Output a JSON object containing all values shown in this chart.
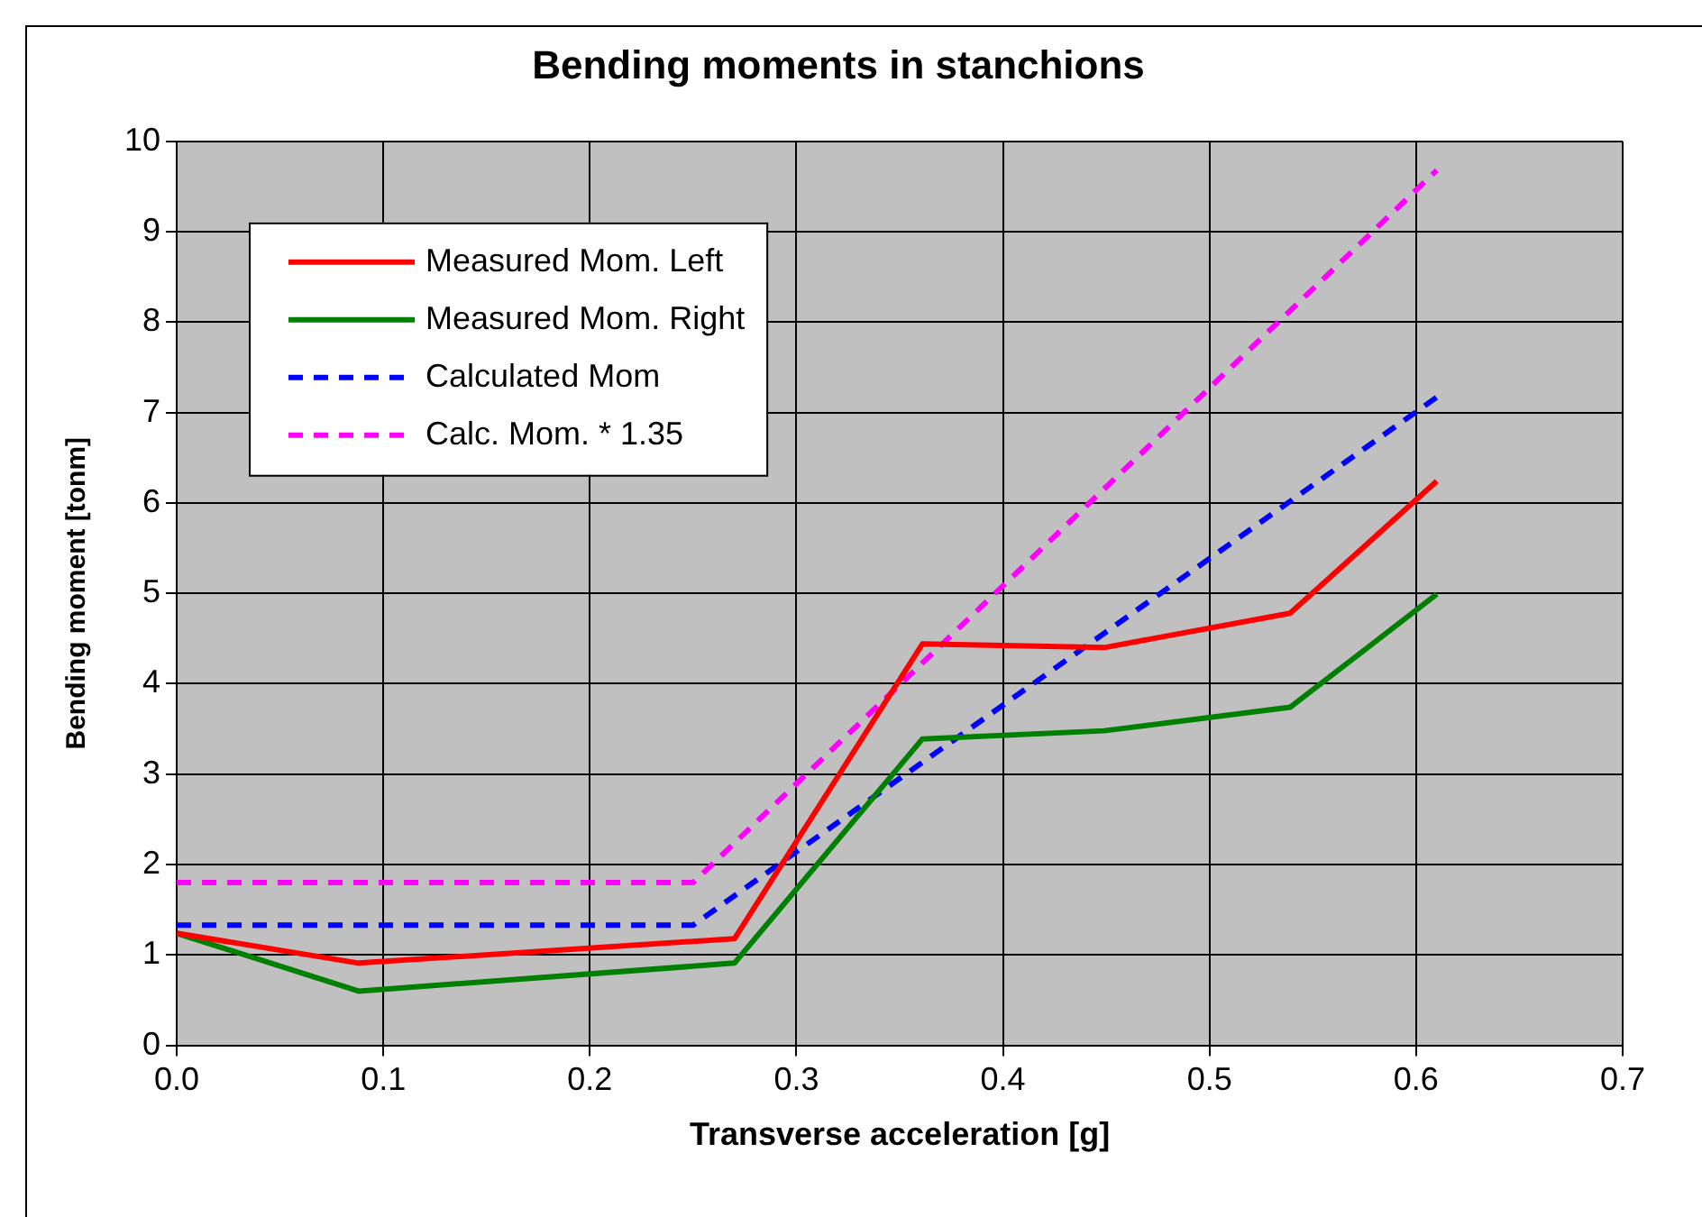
{
  "chart_data": {
    "type": "line",
    "title": "Bending moments in stanchions",
    "xlabel": "Transverse acceleration [g]",
    "ylabel": "Bending moment [tonm]",
    "xlim": [
      0,
      0.7
    ],
    "xticks": [
      {
        "value": 0,
        "label": "0.0"
      },
      {
        "value": 0.1,
        "label": "0.1"
      },
      {
        "value": 0.2,
        "label": "0.2"
      },
      {
        "value": 0.3,
        "label": "0.3"
      },
      {
        "value": 0.4,
        "label": "0.4"
      },
      {
        "value": 0.5,
        "label": "0.5"
      },
      {
        "value": 0.6,
        "label": "0.6"
      },
      {
        "value": 0.7,
        "label": "0.7"
      }
    ],
    "ylim": [
      0,
      10
    ],
    "yticks": [
      0,
      1,
      2,
      3,
      4,
      5,
      6,
      7,
      8,
      9,
      10
    ],
    "grid": true,
    "legend": "top left",
    "marker": "none",
    "series": [
      {
        "name": "Measured Mom. Left",
        "color": "#ff0000",
        "line_style": "solid",
        "x": [
          0,
          0.088,
          0.27,
          0.361,
          0.449,
          0.539,
          0.61
        ],
        "values": [
          1.24,
          0.91,
          1.18,
          4.44,
          4.4,
          4.78,
          6.24
        ]
      },
      {
        "name": "Measured Mom. Right",
        "color": "#008000",
        "line_style": "solid",
        "x": [
          0,
          0.088,
          0.27,
          0.361,
          0.449,
          0.539,
          0.61
        ],
        "values": [
          1.24,
          0.6,
          0.91,
          3.39,
          3.48,
          3.74,
          4.99
        ]
      },
      {
        "name": "Calculated Mom",
        "color": "#0000ff",
        "line_style": "dashed",
        "x": [
          0,
          0.25,
          0.61
        ],
        "values": [
          1.33,
          1.33,
          7.17
        ]
      },
      {
        "name": "Calc. Mom. * 1.35",
        "color": "#ff00ff",
        "line_style": "dashed",
        "x": [
          0,
          0.25,
          0.61
        ],
        "values": [
          1.8,
          1.8,
          9.68
        ]
      }
    ]
  }
}
